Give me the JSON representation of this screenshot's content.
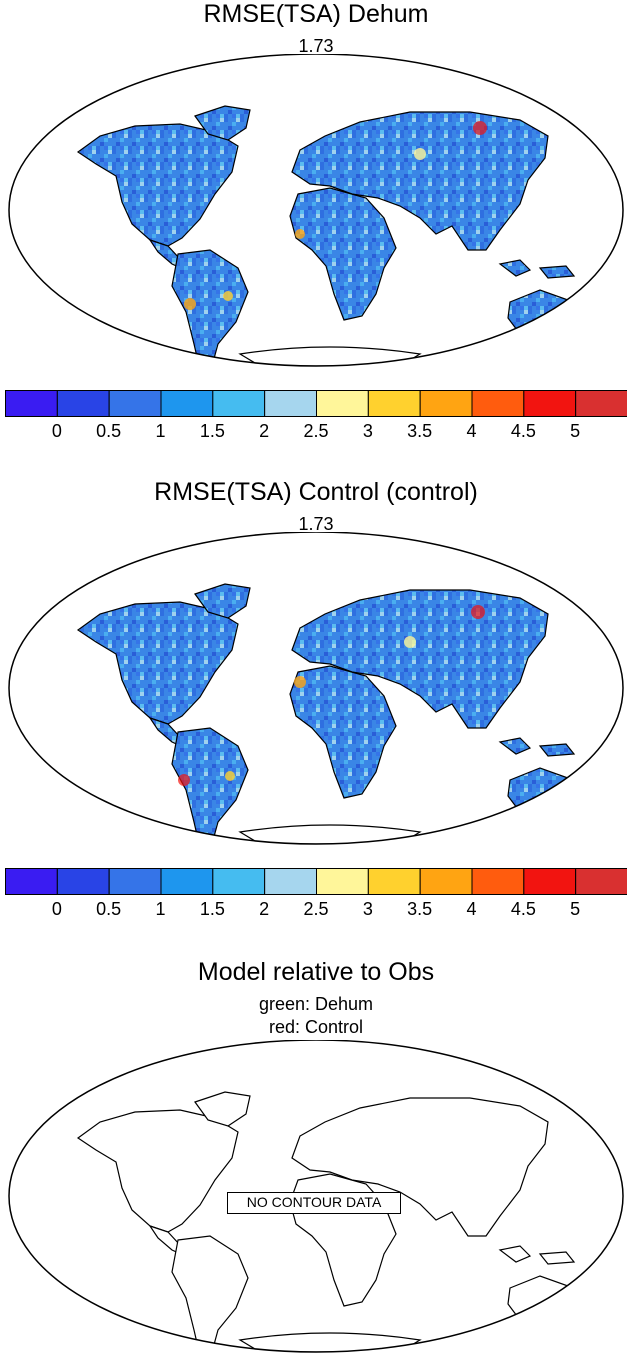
{
  "panels": [
    {
      "title": "RMSE(TSA) Dehum",
      "mean_label": "1.73",
      "colorbar": {
        "colors": [
          "#3a1cf2",
          "#2944e6",
          "#3574e8",
          "#1e96ee",
          "#45bcf0",
          "#a6d6ee",
          "#fff69a",
          "#ffd12e",
          "#ffa412",
          "#ff5c0e",
          "#f21410",
          "#d93030"
        ],
        "tick_labels": [
          "0",
          "0.5",
          "1",
          "1.5",
          "2",
          "2.5",
          "3",
          "3.5",
          "4",
          "4.5",
          "5"
        ]
      }
    },
    {
      "title": "RMSE(TSA) Control (control)",
      "mean_label": "1.73",
      "colorbar": {
        "colors": [
          "#3a1cf2",
          "#2944e6",
          "#3574e8",
          "#1e96ee",
          "#45bcf0",
          "#a6d6ee",
          "#fff69a",
          "#ffd12e",
          "#ffa412",
          "#ff5c0e",
          "#f21410",
          "#d93030"
        ],
        "tick_labels": [
          "0",
          "0.5",
          "1",
          "1.5",
          "2",
          "2.5",
          "3",
          "3.5",
          "4",
          "4.5",
          "5"
        ]
      }
    },
    {
      "title": "Model relative to Obs",
      "legend_line1": "green: Dehum",
      "legend_line2": "red: Control",
      "nodata_label": "NO CONTOUR DATA"
    }
  ]
}
